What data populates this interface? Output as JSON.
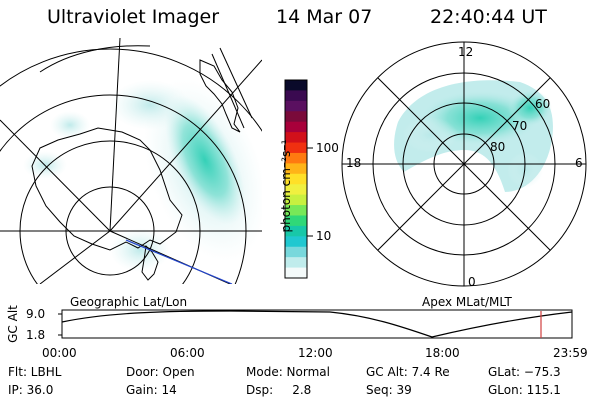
{
  "header": {
    "instrument": "Ultraviolet Imager",
    "date": "14 Mar 07",
    "time": "22:40:44 UT"
  },
  "colorbar": {
    "unit_label": "photon cm⁻²s⁻¹",
    "ticks": [
      "100",
      "10"
    ],
    "colors": [
      "#0a0a2a",
      "#3a0a50",
      "#5a1060",
      "#7a0a3a",
      "#a8003a",
      "#d2101a",
      "#f03010",
      "#ff7a10",
      "#ffb418",
      "#ffe028",
      "#f0f040",
      "#c8f040",
      "#78e858",
      "#30d878",
      "#18c8a8",
      "#20c8d0",
      "#78d8dc",
      "#c0ecec",
      "#f4fafa"
    ]
  },
  "geo_map": {
    "caption": "Geographic Lat/Lon"
  },
  "polar_plot": {
    "caption": "Apex MLat/MLT",
    "mlt_labels": {
      "top": "12",
      "left": "18",
      "right": "6",
      "bottom": "0"
    },
    "lat_labels": [
      "60",
      "70",
      "80"
    ]
  },
  "alt_plot": {
    "ylabel": "GC Alt",
    "y_ticks": [
      "9.0",
      "1.8"
    ],
    "x_ticks": [
      "00:00",
      "06:00",
      "12:00",
      "18:00",
      "23:59"
    ],
    "current_marker_hours": 22.68
  },
  "status": {
    "flt": "Flt: LBHL",
    "ip": "IP: 36.0",
    "door": "Door: Open",
    "gain": "Gain: 14",
    "mode": "Mode: Normal",
    "dsp": "Dsp:     2.8",
    "gc_alt": "GC Alt: 7.4 Re",
    "seq": "Seq: 39",
    "glat": "GLat: −75.3",
    "glon": "GLon: 115.1"
  },
  "colors": {
    "aurora_light": "#c2ecec",
    "aurora_mid": "#5cd8cc",
    "aurora_strong": "#2ccfb4",
    "marker": "#d04040",
    "track": "#2244cc"
  }
}
